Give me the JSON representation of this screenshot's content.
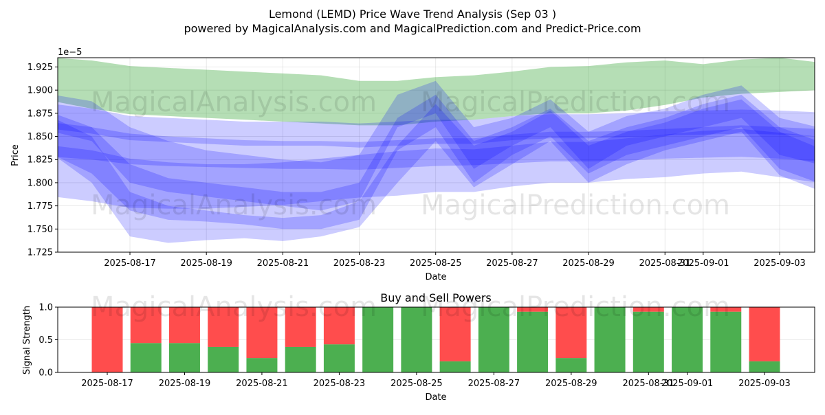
{
  "title_line1": "Lemond (LEMD) Price Wave Trend Analysis (Sep 03 )",
  "title_line2": "powered by MagicalAnalysis.com and MagicalPrediction.com and Predict-Price.com",
  "watermarks": [
    "MagicalAnalysis.com",
    "MagicalPrediction.com"
  ],
  "colors": {
    "green_band": "#2ca02c",
    "blue_band": "#0000ff",
    "buy": "#4caf50",
    "sell": "#ff4d4d"
  },
  "chart_data": [
    {
      "type": "area",
      "xlabel": "Date",
      "ylabel": "Price",
      "y_offset_label": "1e−5",
      "ylim": [
        1.725,
        1.935
      ],
      "grid": true,
      "x_dates": [
        "2025-08-15",
        "2025-08-16",
        "2025-08-17",
        "2025-08-18",
        "2025-08-19",
        "2025-08-20",
        "2025-08-21",
        "2025-08-22",
        "2025-08-23",
        "2025-08-24",
        "2025-08-25",
        "2025-08-26",
        "2025-08-27",
        "2025-08-28",
        "2025-08-29",
        "2025-08-30",
        "2025-08-31",
        "2025-09-01",
        "2025-09-02",
        "2025-09-03",
        "2025-09-04"
      ],
      "x_ticks": [
        "2025-08-17",
        "2025-08-19",
        "2025-08-21",
        "2025-08-23",
        "2025-08-25",
        "2025-08-27",
        "2025-08-29",
        "2025-08-31",
        "2025-09-01",
        "2025-09-03"
      ],
      "y_ticks": [
        "1.725",
        "1.750",
        "1.775",
        "1.800",
        "1.825",
        "1.850",
        "1.875",
        "1.900",
        "1.925"
      ],
      "series": [
        {
          "upper": [
            1.935,
            1.932,
            1.926,
            1.924,
            1.922,
            1.92,
            1.918,
            1.916,
            1.91,
            1.91,
            1.914,
            1.916,
            1.92,
            1.925,
            1.926,
            1.93,
            1.932,
            1.928,
            1.933,
            1.935,
            1.93
          ],
          "lower": [
            1.888,
            1.88,
            1.874,
            1.872,
            1.87,
            1.868,
            1.866,
            1.864,
            1.862,
            1.862,
            1.866,
            1.868,
            1.872,
            1.875,
            1.875,
            1.878,
            1.884,
            1.892,
            1.896,
            1.898,
            1.9
          ]
        },
        {
          "upper": [
            1.885,
            1.88,
            1.872,
            1.87,
            1.868,
            1.866,
            1.866,
            1.866,
            1.864,
            1.866,
            1.868,
            1.868,
            1.872,
            1.874,
            1.874,
            1.875,
            1.877,
            1.878,
            1.879,
            1.878,
            1.876
          ],
          "lower": [
            1.858,
            1.853,
            1.846,
            1.844,
            1.842,
            1.84,
            1.84,
            1.84,
            1.838,
            1.84,
            1.842,
            1.842,
            1.846,
            1.848,
            1.848,
            1.849,
            1.851,
            1.852,
            1.853,
            1.852,
            1.85
          ]
        },
        {
          "upper": [
            1.865,
            1.86,
            1.853,
            1.85,
            1.848,
            1.846,
            1.845,
            1.845,
            1.844,
            1.846,
            1.848,
            1.848,
            1.852,
            1.855,
            1.855,
            1.856,
            1.858,
            1.86,
            1.862,
            1.86,
            1.858
          ],
          "lower": [
            1.828,
            1.825,
            1.82,
            1.818,
            1.817,
            1.816,
            1.815,
            1.815,
            1.814,
            1.816,
            1.818,
            1.819,
            1.821,
            1.823,
            1.823,
            1.824,
            1.826,
            1.827,
            1.828,
            1.826,
            1.823
          ]
        },
        {
          "upper": [
            1.84,
            1.835,
            1.826,
            1.822,
            1.82,
            1.82,
            1.822,
            1.826,
            1.83,
            1.834,
            1.837,
            1.836,
            1.84,
            1.844,
            1.844,
            1.848,
            1.852,
            1.856,
            1.858,
            1.854,
            1.85
          ],
          "lower": [
            1.785,
            1.78,
            1.773,
            1.772,
            1.772,
            1.774,
            1.776,
            1.78,
            1.784,
            1.786,
            1.79,
            1.79,
            1.796,
            1.8,
            1.8,
            1.804,
            1.806,
            1.81,
            1.812,
            1.806,
            1.8
          ]
        },
        {
          "upper": [
            1.895,
            1.888,
            1.86,
            1.845,
            1.835,
            1.83,
            1.825,
            1.822,
            1.83,
            1.895,
            1.91,
            1.86,
            1.87,
            1.89,
            1.855,
            1.872,
            1.88,
            1.895,
            1.905,
            1.87,
            1.86
          ],
          "lower": [
            1.855,
            1.845,
            1.8,
            1.79,
            1.785,
            1.78,
            1.775,
            1.77,
            1.78,
            1.86,
            1.875,
            1.815,
            1.84,
            1.86,
            1.815,
            1.84,
            1.85,
            1.86,
            1.87,
            1.83,
            1.82
          ]
        },
        {
          "upper": [
            1.875,
            1.86,
            1.82,
            1.805,
            1.8,
            1.795,
            1.79,
            1.79,
            1.8,
            1.87,
            1.895,
            1.845,
            1.86,
            1.88,
            1.845,
            1.86,
            1.87,
            1.885,
            1.895,
            1.86,
            1.845
          ],
          "lower": [
            1.83,
            1.81,
            1.77,
            1.76,
            1.758,
            1.755,
            1.75,
            1.75,
            1.76,
            1.835,
            1.86,
            1.8,
            1.83,
            1.85,
            1.81,
            1.83,
            1.84,
            1.85,
            1.86,
            1.815,
            1.8
          ]
        },
        {
          "upper": [
            1.87,
            1.85,
            1.79,
            1.775,
            1.77,
            1.765,
            1.762,
            1.765,
            1.78,
            1.84,
            1.885,
            1.84,
            1.855,
            1.878,
            1.84,
            1.855,
            1.865,
            1.88,
            1.89,
            1.855,
            1.838
          ],
          "lower": [
            1.83,
            1.8,
            1.742,
            1.735,
            1.738,
            1.74,
            1.737,
            1.742,
            1.752,
            1.8,
            1.845,
            1.795,
            1.82,
            1.845,
            1.8,
            1.82,
            1.835,
            1.845,
            1.855,
            1.808,
            1.792
          ]
        }
      ]
    },
    {
      "type": "bar",
      "title": "Buy and Sell Powers",
      "xlabel": "Date",
      "ylabel": "Signal Strength",
      "ylim": [
        0,
        1
      ],
      "y_ticks": [
        "0.0",
        "0.5",
        "1.0"
      ],
      "x_ticks": [
        "2025-08-17",
        "2025-08-19",
        "2025-08-21",
        "2025-08-23",
        "2025-08-25",
        "2025-08-27",
        "2025-08-29",
        "2025-08-31",
        "2025-09-01",
        "2025-09-03"
      ],
      "categories": [
        "2025-08-17",
        "2025-08-18",
        "2025-08-19",
        "2025-08-20",
        "2025-08-21",
        "2025-08-22",
        "2025-08-23",
        "2025-08-24",
        "2025-08-25",
        "2025-08-26",
        "2025-08-27",
        "2025-08-28",
        "2025-08-29",
        "2025-08-30",
        "2025-08-31",
        "2025-09-01",
        "2025-09-02",
        "2025-09-03"
      ],
      "series": [
        {
          "name": "Buy",
          "values": [
            0.0,
            0.45,
            0.45,
            0.39,
            0.22,
            0.39,
            0.43,
            1.0,
            1.0,
            0.17,
            1.0,
            0.93,
            0.22,
            1.0,
            0.93,
            1.0,
            0.93,
            0.17
          ]
        },
        {
          "name": "Sell",
          "values": [
            1.0,
            0.55,
            0.55,
            0.61,
            0.78,
            0.61,
            0.57,
            0.0,
            0.0,
            0.83,
            0.0,
            0.07,
            0.78,
            0.0,
            0.07,
            0.0,
            0.07,
            0.83
          ]
        }
      ]
    }
  ]
}
